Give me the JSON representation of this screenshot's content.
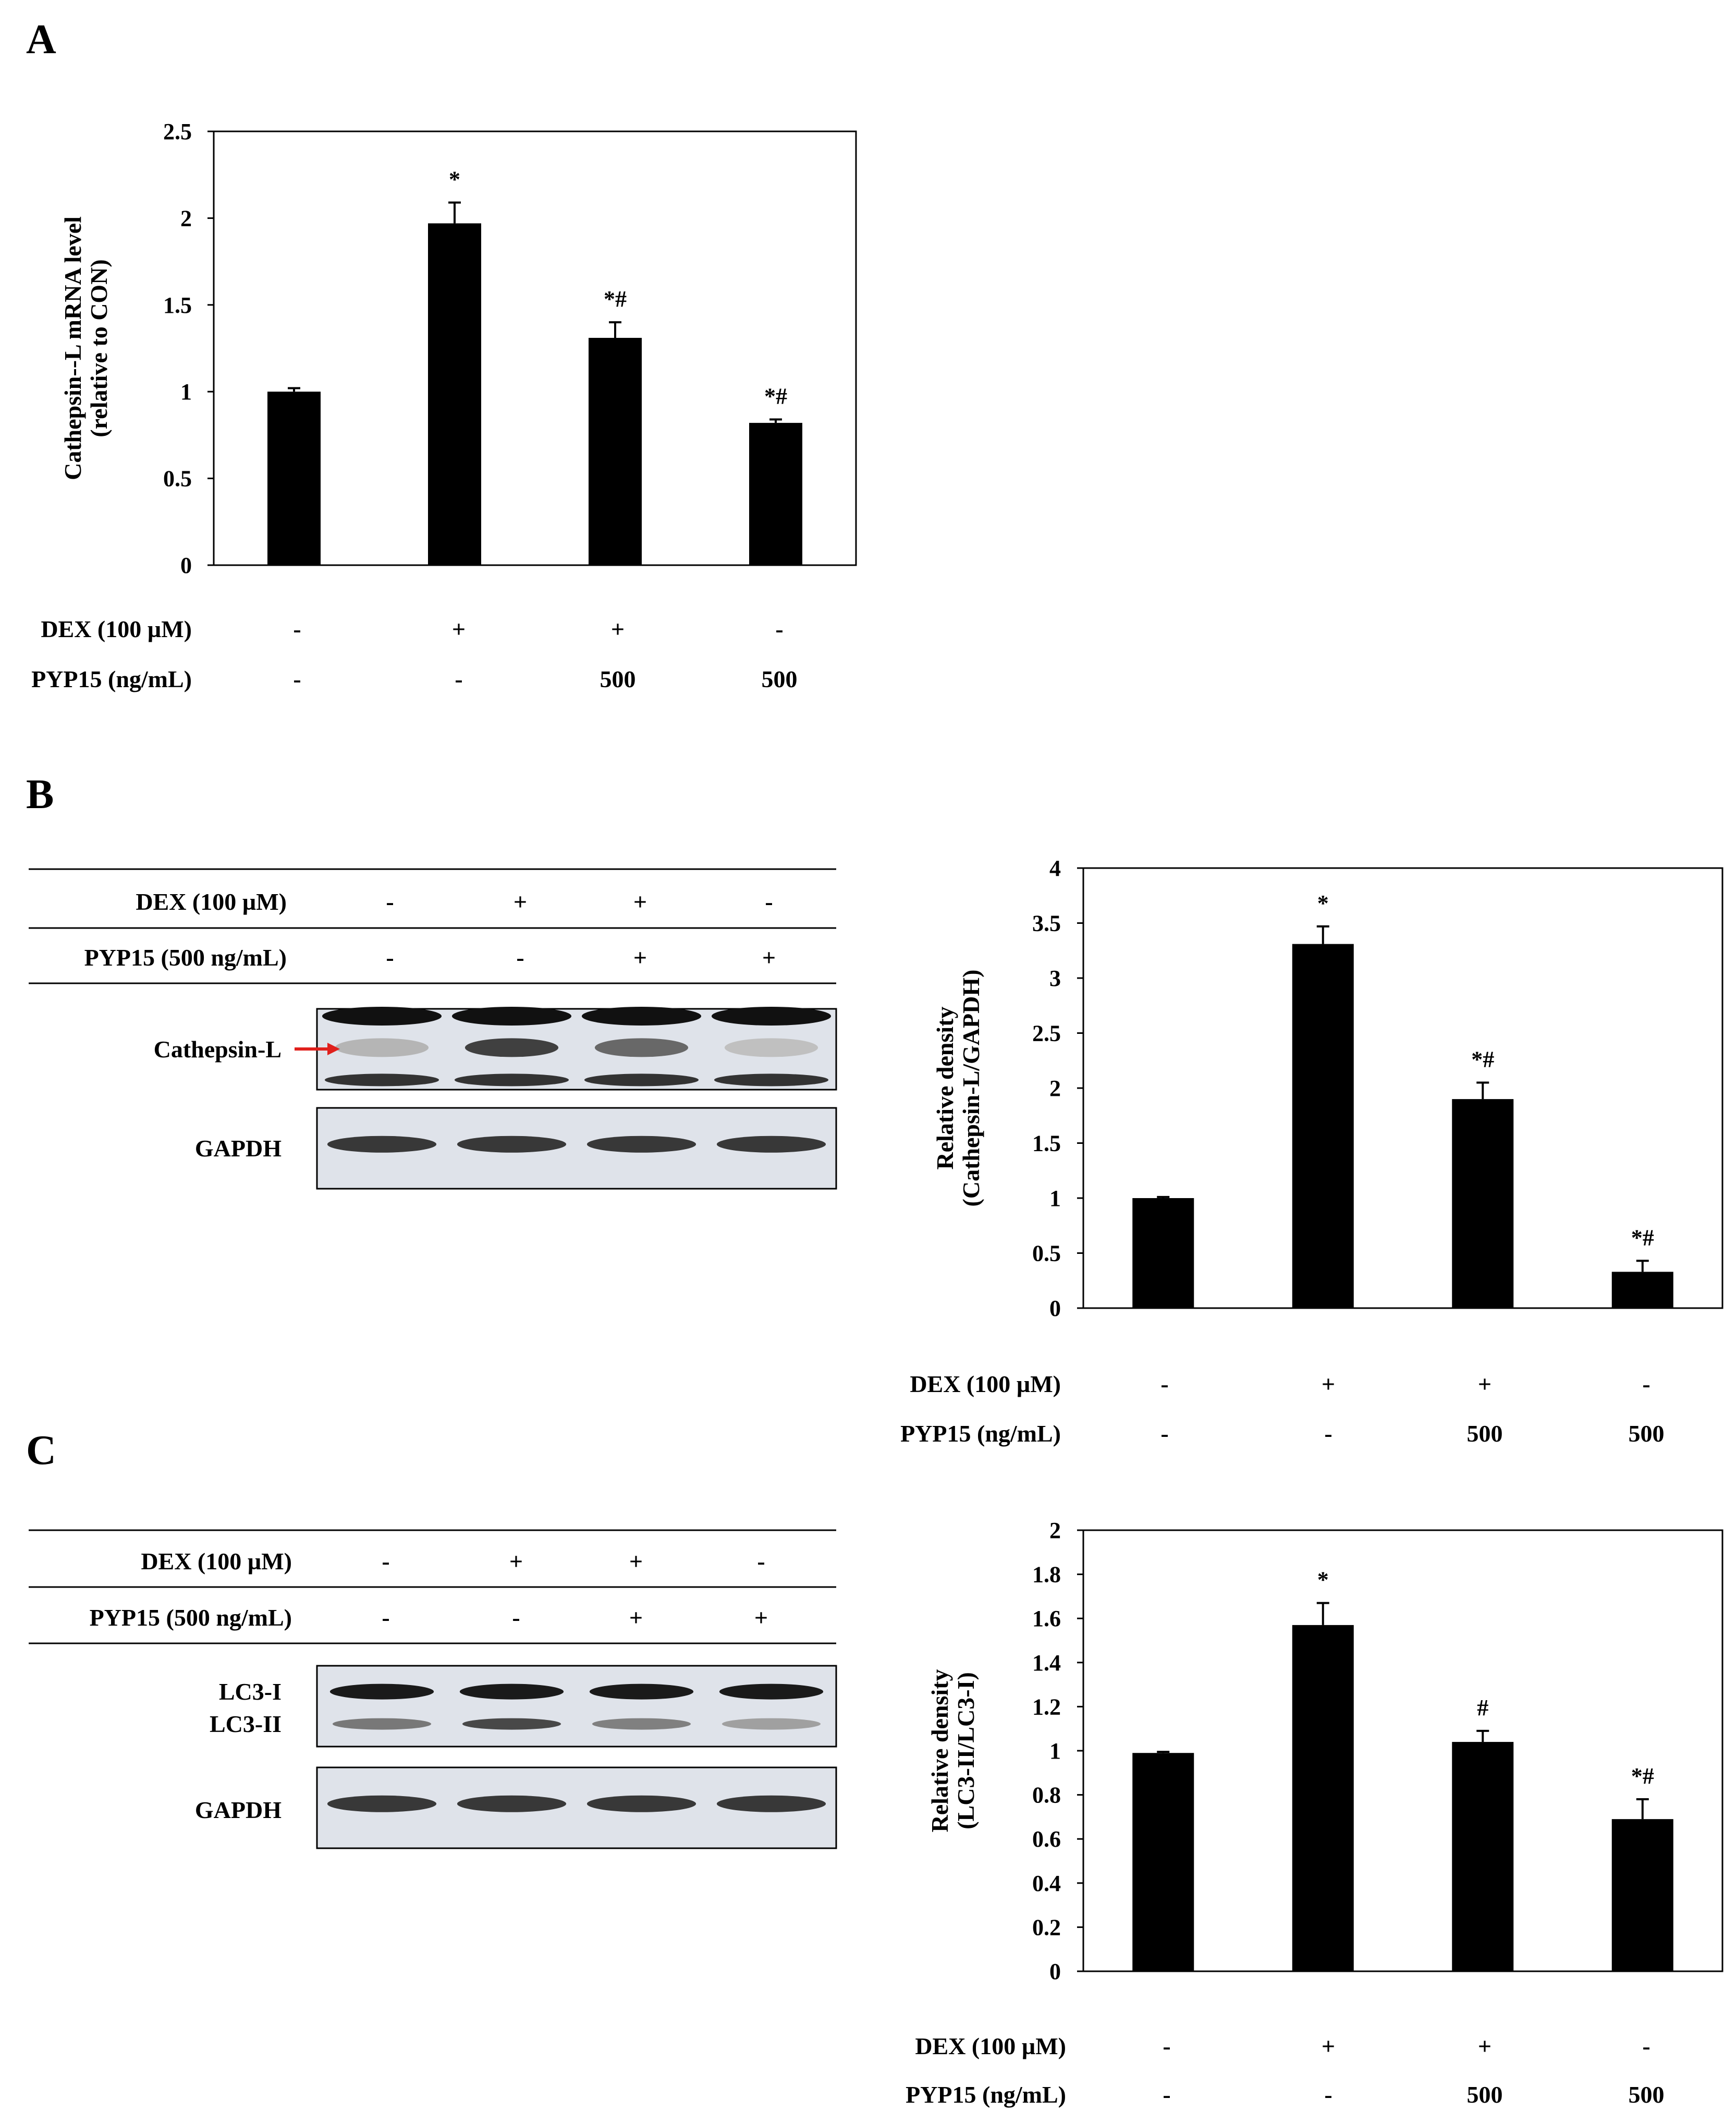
{
  "panels": [
    {
      "letter": "A"
    },
    {
      "letter": "B"
    },
    {
      "letter": "C"
    }
  ],
  "chart_data": [
    {
      "type": "bar",
      "panel": "A",
      "categories": [
        "1",
        "2",
        "3",
        "4"
      ],
      "values": [
        1.0,
        1.97,
        1.31,
        0.82
      ],
      "errors": [
        0.02,
        0.12,
        0.09,
        0.02
      ],
      "significance": [
        "",
        "*",
        "*#",
        "*#"
      ],
      "ylabel": "Cathepsin--L mRNA level",
      "ylabel2": "(relative to CON)",
      "ylim": [
        0,
        2.5
      ],
      "yticks": [
        "0",
        "0.5",
        "1",
        "1.5",
        "2",
        "2.5"
      ],
      "color": "#000000",
      "conditions": [
        {
          "label": "DEX (100 µM)",
          "values": [
            "-",
            "+",
            "+",
            "-"
          ]
        },
        {
          "label": "PYP15 (ng/mL)",
          "values": [
            "-",
            "-",
            "500",
            "500"
          ]
        }
      ]
    },
    {
      "type": "bar",
      "panel": "B",
      "categories": [
        "1",
        "2",
        "3",
        "4"
      ],
      "values": [
        1.0,
        3.31,
        1.9,
        0.33
      ],
      "errors": [
        0.01,
        0.16,
        0.15,
        0.1
      ],
      "significance": [
        "",
        "*",
        "*#",
        "*#"
      ],
      "ylabel": "Relative density",
      "ylabel2": "(Cathepsin-L/GAPDH)",
      "ylim": [
        0,
        4
      ],
      "yticks": [
        "0",
        "0.5",
        "1",
        "1.5",
        "2",
        "2.5",
        "3",
        "3.5",
        "4"
      ],
      "color": "#000000",
      "conditions": [
        {
          "label": "DEX (100 µM)",
          "values": [
            "-",
            "+",
            "+",
            "-"
          ]
        },
        {
          "label": "PYP15 (ng/mL)",
          "values": [
            "-",
            "-",
            "500",
            "500"
          ]
        }
      ]
    },
    {
      "type": "bar",
      "panel": "C",
      "categories": [
        "1",
        "2",
        "3",
        "4"
      ],
      "values": [
        0.99,
        1.57,
        1.04,
        0.69
      ],
      "errors": [
        0.005,
        0.1,
        0.05,
        0.09
      ],
      "significance": [
        "",
        "*",
        "#",
        "*#"
      ],
      "ylabel": "Relative density",
      "ylabel2": "(LC3-II/LC3-I)",
      "ylim": [
        0,
        2
      ],
      "yticks": [
        "0",
        "0.2",
        "0.4",
        "0.6",
        "0.8",
        "1",
        "1.2",
        "1.4",
        "1.6",
        "1.8",
        "2"
      ],
      "color": "#000000",
      "conditions": [
        {
          "label": "DEX (100 µM)",
          "values": [
            "-",
            "+",
            "+",
            "-"
          ]
        },
        {
          "label": "PYP15 (ng/mL)",
          "values": [
            "-",
            "-",
            "500",
            "500"
          ]
        }
      ]
    }
  ],
  "blots": [
    {
      "panel": "B",
      "conditions": [
        {
          "label": "DEX (100 µM)",
          "values": [
            "-",
            "+",
            "+",
            "-"
          ]
        },
        {
          "label": "PYP15 (500 ng/mL)",
          "values": [
            "-",
            "-",
            "+",
            "+"
          ]
        }
      ],
      "strips": [
        {
          "labels": [
            "Cathepsin-L"
          ],
          "bands": [
            0.12,
            0.85,
            0.6,
            0.05
          ]
        },
        {
          "labels": [
            "GAPDH"
          ],
          "bands": [
            0.9,
            0.9,
            0.9,
            0.9
          ]
        }
      ],
      "arrow_color": "#e0201c"
    },
    {
      "panel": "C",
      "conditions": [
        {
          "label": "DEX (100 µM)",
          "values": [
            "-",
            "+",
            "+",
            "-"
          ]
        },
        {
          "label": "PYP15 (500 ng/mL)",
          "values": [
            "-",
            "-",
            "+",
            "+"
          ]
        }
      ],
      "strips": [
        {
          "labels": [
            "LC3-I",
            "LC3-II"
          ],
          "bands": [
            0.5,
            0.8,
            0.45,
            0.25
          ]
        },
        {
          "labels": [
            "GAPDH"
          ],
          "bands": [
            0.9,
            0.9,
            0.9,
            0.9
          ]
        }
      ]
    }
  ],
  "blot_background": "#dfe3ea"
}
